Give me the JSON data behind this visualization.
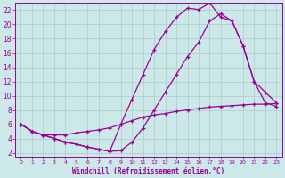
{
  "xlabel": "Windchill (Refroidissement éolien,°C)",
  "bg_color": "#cce8e8",
  "grid_color": "#aacccc",
  "line_color": "#990099",
  "xlim": [
    -0.5,
    23.5
  ],
  "ylim": [
    1.5,
    23.0
  ],
  "xticks": [
    0,
    1,
    2,
    3,
    4,
    5,
    6,
    7,
    8,
    9,
    10,
    11,
    12,
    13,
    14,
    15,
    16,
    17,
    18,
    19,
    20,
    21,
    22,
    23
  ],
  "yticks": [
    2,
    4,
    6,
    8,
    10,
    12,
    14,
    16,
    18,
    20,
    22
  ],
  "line1_x": [
    0,
    1,
    2,
    3,
    4,
    5,
    6,
    7,
    8,
    9,
    10,
    11,
    12,
    13,
    14,
    15,
    16,
    17,
    18,
    19,
    20,
    21,
    22,
    23
  ],
  "line1_y": [
    6,
    5,
    4.5,
    4,
    3.5,
    3.2,
    2.8,
    2.5,
    2.2,
    6,
    9.5,
    13,
    16.5,
    19,
    21,
    22.3,
    22.1,
    23,
    21,
    20.5,
    17,
    12,
    10.5,
    9.0
  ],
  "line2_x": [
    0,
    1,
    2,
    3,
    4,
    5,
    6,
    7,
    8,
    9,
    10,
    11,
    12,
    13,
    14,
    15,
    16,
    17,
    18,
    19,
    20,
    21,
    22,
    23
  ],
  "line2_y": [
    6,
    5,
    4.5,
    4,
    3.5,
    3.2,
    2.8,
    2.5,
    2.2,
    2.3,
    3.5,
    5.5,
    8,
    10.5,
    13,
    15.5,
    17.5,
    20.5,
    21.5,
    20.5,
    17,
    12,
    9,
    8.5
  ],
  "line3_x": [
    0,
    1,
    2,
    3,
    4,
    5,
    6,
    7,
    8,
    9,
    10,
    11,
    12,
    13,
    14,
    15,
    16,
    17,
    18,
    19,
    20,
    21,
    22,
    23
  ],
  "line3_y": [
    6,
    5,
    4.5,
    4.5,
    4.5,
    4.8,
    5.0,
    5.2,
    5.5,
    6,
    6.5,
    7,
    7.3,
    7.5,
    7.8,
    8.0,
    8.2,
    8.4,
    8.5,
    8.6,
    8.7,
    8.8,
    8.8,
    8.9
  ]
}
